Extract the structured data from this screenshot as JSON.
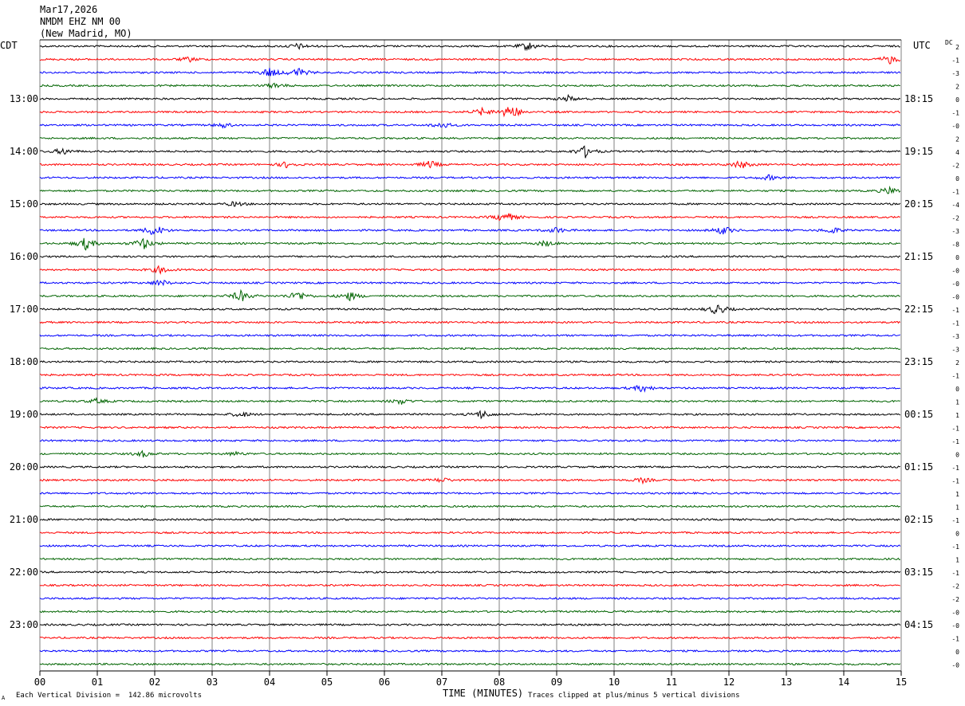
{
  "header": {
    "date": "Mar17,2026",
    "station": "NMDM EHZ NM 00",
    "location": "(New Madrid, MO)"
  },
  "left_zone_label": "CDT",
  "right_zone_label": "UTC",
  "dc_label": "DC",
  "footer": {
    "scale_note": "Each Vertical Division =  142.86 microvolts",
    "clip_note": "Traces clipped at plus/minus 5 vertical divisions",
    "corner_mark": "A"
  },
  "colors": {
    "trace_cycle": [
      "#000000",
      "#ff0000",
      "#0000ff",
      "#006400"
    ],
    "grid": "#808080"
  },
  "chart_data": {
    "type": "line",
    "xlabel": "TIME (MINUTES)",
    "xlim": [
      0,
      15
    ],
    "x_tick_labels": [
      "00",
      "01",
      "02",
      "03",
      "04",
      "05",
      "06",
      "07",
      "08",
      "09",
      "10",
      "11",
      "12",
      "13",
      "14",
      "15"
    ],
    "left_hour_labels": [
      "13:00",
      "14:00",
      "15:00",
      "16:00",
      "17:00",
      "18:00",
      "19:00",
      "20:00",
      "21:00",
      "22:00",
      "23:00"
    ],
    "right_hour_labels": [
      "18:15",
      "19:15",
      "20:15",
      "21:15",
      "22:15",
      "23:15",
      "00:15",
      "01:15",
      "02:15",
      "03:15",
      "04:15"
    ],
    "trace_count": 48,
    "dc_offsets": [
      "2",
      "-1",
      "-3",
      "2",
      "0",
      "-1",
      "-0",
      "2",
      "4",
      "-2",
      "0",
      "-1",
      "-4",
      "-2",
      "-3",
      "-8",
      "0",
      "-0",
      "-0",
      "-0",
      "-1",
      "-1",
      "-3",
      "-3",
      "2",
      "-1",
      "0",
      "1",
      "1",
      "-1",
      "-1",
      "0",
      "-1",
      "-1",
      "1",
      "1",
      "-1",
      "0",
      "-1",
      "1",
      "-1",
      "-2",
      "-2",
      "-0",
      "-0",
      "-1",
      "0",
      "-0"
    ],
    "events": [
      {
        "trace": 0,
        "minute": 8.5,
        "amp": 0.9
      },
      {
        "trace": 0,
        "minute": 4.5,
        "amp": 0.6
      },
      {
        "trace": 1,
        "minute": 2.6,
        "amp": 0.5
      },
      {
        "trace": 1,
        "minute": 14.8,
        "amp": 0.9
      },
      {
        "trace": 2,
        "minute": 4.0,
        "amp": 1.0
      },
      {
        "trace": 2,
        "minute": 4.5,
        "amp": 1.0
      },
      {
        "trace": 3,
        "minute": 4.1,
        "amp": 0.6
      },
      {
        "trace": 4,
        "minute": 9.2,
        "amp": 0.6
      },
      {
        "trace": 5,
        "minute": 8.2,
        "amp": 1.8
      },
      {
        "trace": 5,
        "minute": 7.7,
        "amp": 0.7
      },
      {
        "trace": 6,
        "minute": 7.0,
        "amp": 0.7
      },
      {
        "trace": 6,
        "minute": 3.2,
        "amp": 0.5
      },
      {
        "trace": 8,
        "minute": 9.5,
        "amp": 1.2
      },
      {
        "trace": 8,
        "minute": 0.4,
        "amp": 0.7
      },
      {
        "trace": 9,
        "minute": 6.8,
        "amp": 0.8
      },
      {
        "trace": 9,
        "minute": 12.2,
        "amp": 0.9
      },
      {
        "trace": 9,
        "minute": 4.3,
        "amp": 0.6
      },
      {
        "trace": 10,
        "minute": 12.7,
        "amp": 0.5
      },
      {
        "trace": 11,
        "minute": 14.8,
        "amp": 0.8
      },
      {
        "trace": 12,
        "minute": 3.4,
        "amp": 0.5
      },
      {
        "trace": 13,
        "minute": 8.1,
        "amp": 1.3
      },
      {
        "trace": 14,
        "minute": 2.0,
        "amp": 1.3
      },
      {
        "trace": 14,
        "minute": 11.9,
        "amp": 0.9
      },
      {
        "trace": 14,
        "minute": 9.0,
        "amp": 0.6
      },
      {
        "trace": 14,
        "minute": 13.8,
        "amp": 0.7
      },
      {
        "trace": 15,
        "minute": 0.8,
        "amp": 1.3
      },
      {
        "trace": 15,
        "minute": 1.8,
        "amp": 1.2
      },
      {
        "trace": 15,
        "minute": 8.8,
        "amp": 0.6
      },
      {
        "trace": 17,
        "minute": 2.1,
        "amp": 0.8
      },
      {
        "trace": 18,
        "minute": 2.1,
        "amp": 0.7
      },
      {
        "trace": 19,
        "minute": 3.5,
        "amp": 1.2
      },
      {
        "trace": 19,
        "minute": 4.5,
        "amp": 1.1
      },
      {
        "trace": 19,
        "minute": 5.4,
        "amp": 0.9
      },
      {
        "trace": 20,
        "minute": 11.8,
        "amp": 1.2
      },
      {
        "trace": 26,
        "minute": 10.5,
        "amp": 0.8
      },
      {
        "trace": 27,
        "minute": 6.3,
        "amp": 0.6
      },
      {
        "trace": 27,
        "minute": 1.0,
        "amp": 0.5
      },
      {
        "trace": 28,
        "minute": 3.5,
        "amp": 0.6
      },
      {
        "trace": 28,
        "minute": 7.7,
        "amp": 0.9
      },
      {
        "trace": 31,
        "minute": 1.8,
        "amp": 0.6
      },
      {
        "trace": 31,
        "minute": 3.4,
        "amp": 0.4
      },
      {
        "trace": 33,
        "minute": 7.0,
        "amp": 0.5
      },
      {
        "trace": 33,
        "minute": 10.5,
        "amp": 0.5
      }
    ]
  }
}
